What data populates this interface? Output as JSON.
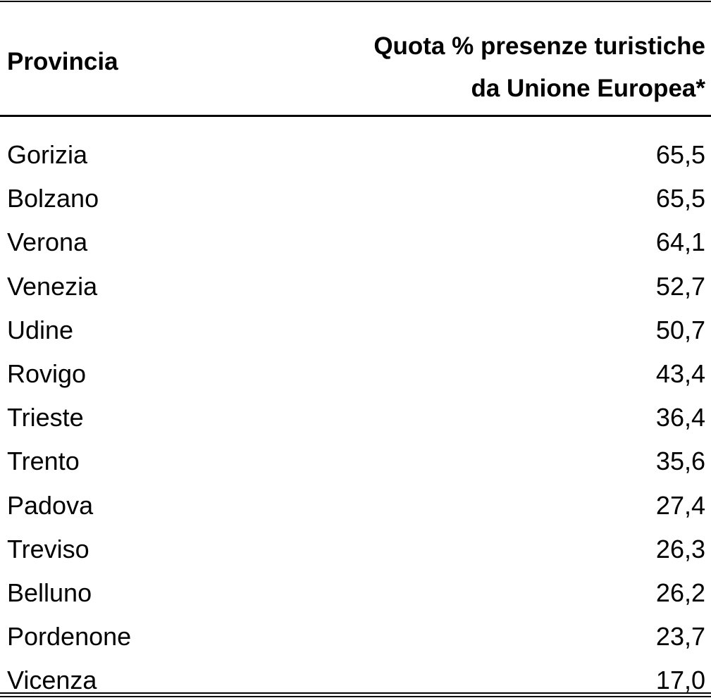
{
  "table": {
    "header": [
      "Provincia",
      "Quota % presenze turistiche\nda Unione Europea*"
    ],
    "rows": [
      [
        "Gorizia",
        "65,5"
      ],
      [
        "Bolzano",
        "65,5"
      ],
      [
        "Verona",
        "64,1"
      ],
      [
        "Venezia",
        "52,7"
      ],
      [
        "Udine",
        "50,7"
      ],
      [
        "Rovigo",
        "43,4"
      ],
      [
        "Trieste",
        "36,4"
      ],
      [
        "Trento",
        "35,6"
      ],
      [
        "Padova",
        "27,4"
      ],
      [
        "Treviso",
        "26,3"
      ],
      [
        "Belluno",
        "26,2"
      ],
      [
        "Pordenone",
        "23,7"
      ],
      [
        "Vicenza",
        "17,0"
      ]
    ]
  }
}
